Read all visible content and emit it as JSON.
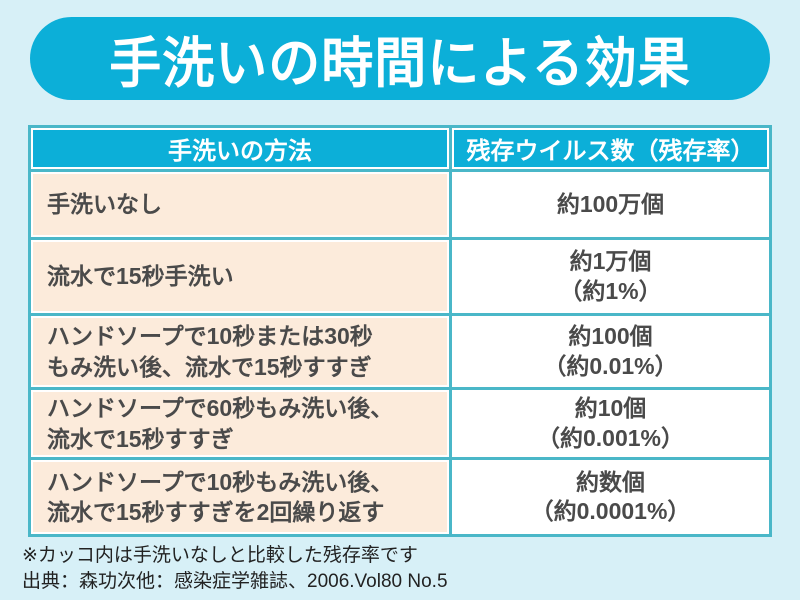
{
  "chart_data": {
    "type": "table",
    "title": "手洗いの時間による効果",
    "columns": [
      "手洗いの方法",
      "残存ウイルス数（残存率）"
    ],
    "rows": [
      {
        "method": "手洗いなし",
        "count": "約100万個",
        "rate": ""
      },
      {
        "method": "流水で15秒手洗い",
        "count": "約1万個",
        "rate": "（約1%）"
      },
      {
        "method": "ハンドソープで10秒または30秒\nもみ洗い後、流水で15秒すすぎ",
        "count": "約100個",
        "rate": "（約0.01%）"
      },
      {
        "method": "ハンドソープで60秒もみ洗い後、\n流水で15秒すすぎ",
        "count": "約10個",
        "rate": "（約0.001%）"
      },
      {
        "method": "ハンドソープで10秒もみ洗い後、\n流水で15秒すすぎを2回繰り返す",
        "count": "約数個",
        "rate": "（約0.0001%）"
      }
    ],
    "note": "※カッコ内は手洗いなしと比較した残存率です",
    "source": "出典：森功次他：感染症学雑誌、2006.Vol80 No.5",
    "legend_position": "none",
    "grid": true
  },
  "colors": {
    "page_background": "#d7f0f7",
    "accent_cyan": "#0cafd8",
    "grid_line_teal": "#4ab7c8",
    "method_cell_peach": "#fcebdb",
    "body_text": "#4a4a4a",
    "header_text": "#ffffff",
    "footer_text": "#222222"
  }
}
